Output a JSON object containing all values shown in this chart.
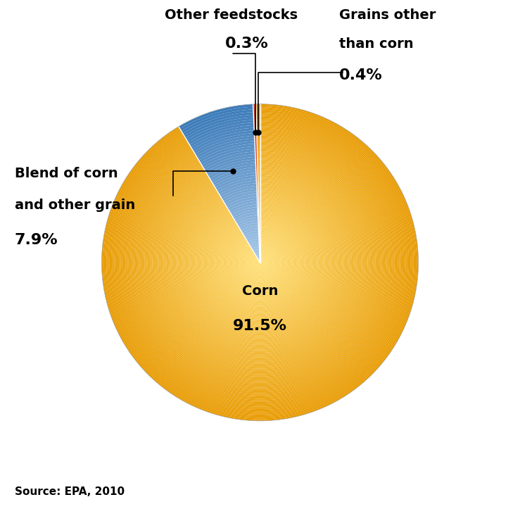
{
  "slices": [
    {
      "label": "Corn",
      "pct_label": "91.5%",
      "value": 91.5
    },
    {
      "label": "Blend of corn\nand other grain",
      "pct_label": "7.9%",
      "value": 7.9
    },
    {
      "label": "Other feedstocks",
      "pct_label": "0.3%",
      "value": 0.3
    },
    {
      "label": "Grains other\nthan corn",
      "pct_label": "0.4%",
      "value": 0.4
    }
  ],
  "corn_color_center": "#FFE07A",
  "corn_color_edge": "#E89A00",
  "blend_color_top": "#A8C8E8",
  "blend_color_bottom": "#3A7AB8",
  "other_color": "#E04820",
  "grains_color_center": "#FFE07A",
  "grains_color_edge": "#E89A00",
  "background_color": "#FFFFFF",
  "source_text": "Source: EPA, 2010",
  "label_fontsize": 14,
  "pct_fontsize": 16,
  "source_fontsize": 11,
  "startangle": 90.0
}
